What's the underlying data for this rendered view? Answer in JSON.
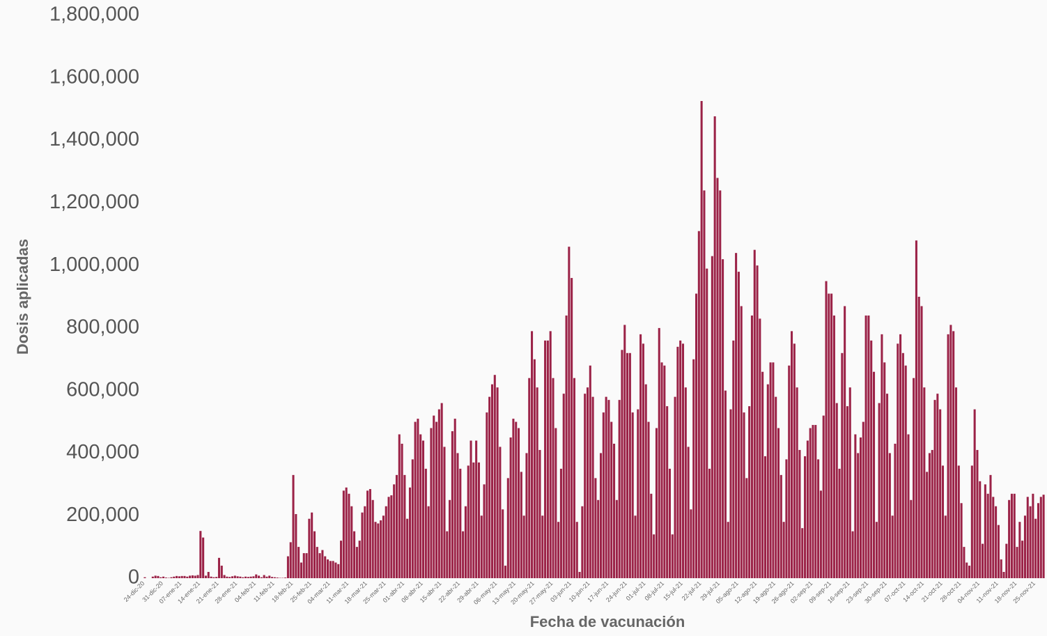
{
  "chart_data": {
    "type": "bar",
    "x_label": "Fecha de vacunación",
    "y_label": "Dosis aplicadas",
    "color": "#9b2247",
    "ylim": [
      0,
      1800000
    ],
    "yticks": [
      0,
      {
        "value": 200000,
        "label": "200,000"
      },
      {
        "value": 400000,
        "label": "400,000"
      },
      {
        "value": 600000,
        "label": "600,000"
      },
      {
        "value": 800000,
        "label": "800,000"
      },
      {
        "value": 1000000,
        "label": "1,000,000"
      },
      {
        "value": 1200000,
        "label": "1,200,000"
      },
      {
        "value": 1400000,
        "label": "1,400,000"
      },
      {
        "value": 1600000,
        "label": "1,600,000"
      },
      {
        "value": 1800000,
        "label": "1,800,000"
      }
    ],
    "categories": [
      "24-dic-20",
      null,
      null,
      null,
      null,
      null,
      null,
      "31-dic-20",
      null,
      null,
      null,
      null,
      null,
      null,
      "07-ene-21",
      null,
      null,
      null,
      null,
      null,
      null,
      "14-ene-21",
      null,
      null,
      null,
      null,
      null,
      null,
      "21-ene-21",
      null,
      null,
      null,
      null,
      null,
      null,
      "28-ene-21",
      null,
      null,
      null,
      null,
      null,
      null,
      "04-feb-21",
      null,
      null,
      null,
      null,
      null,
      null,
      "11-feb-21",
      null,
      null,
      null,
      null,
      null,
      null,
      "18-feb-21",
      null,
      null,
      null,
      null,
      null,
      null,
      "25-feb-21",
      null,
      null,
      null,
      null,
      null,
      null,
      "04-mar-21",
      null,
      null,
      null,
      null,
      null,
      null,
      "11-mar-21",
      null,
      null,
      null,
      null,
      null,
      null,
      "18-mar-21",
      null,
      null,
      null,
      null,
      null,
      null,
      "25-mar-21",
      null,
      null,
      null,
      null,
      null,
      null,
      "01-abr-21",
      null,
      null,
      null,
      null,
      null,
      null,
      "08-abr-21",
      null,
      null,
      null,
      null,
      null,
      null,
      "15-abr-21",
      null,
      null,
      null,
      null,
      null,
      null,
      "22-abr-21",
      null,
      null,
      null,
      null,
      null,
      null,
      "29-abr-21",
      null,
      null,
      null,
      null,
      null,
      null,
      "06-may-21",
      null,
      null,
      null,
      null,
      null,
      null,
      "13-may-21",
      null,
      null,
      null,
      null,
      null,
      null,
      "20-may-21",
      null,
      null,
      null,
      null,
      null,
      null,
      "27-may-21",
      null,
      null,
      null,
      null,
      null,
      null,
      "03-jun-21",
      null,
      null,
      null,
      null,
      null,
      null,
      "10-jun-21",
      null,
      null,
      null,
      null,
      null,
      null,
      "17-jun-21",
      null,
      null,
      null,
      null,
      null,
      null,
      "24-jun-21",
      null,
      null,
      null,
      null,
      null,
      null,
      "01-jul-21",
      null,
      null,
      null,
      null,
      null,
      null,
      "08-jul-21",
      null,
      null,
      null,
      null,
      null,
      null,
      "15-jul-21",
      null,
      null,
      null,
      null,
      null,
      null,
      "22-jul-21",
      null,
      null,
      null,
      null,
      null,
      null,
      "29-jul-21",
      null,
      null,
      null,
      null,
      null,
      null,
      "05-ago-21",
      null,
      null,
      null,
      null,
      null,
      null,
      "12-ago-21",
      null,
      null,
      null,
      null,
      null,
      null,
      "19-ago-21",
      null,
      null,
      null,
      null,
      null,
      null,
      "26-ago-21",
      null,
      null,
      null,
      null,
      null,
      null,
      "02-sep-21",
      null,
      null,
      null,
      null,
      null,
      null,
      "09-sep-21",
      null,
      null,
      null,
      null,
      null,
      null,
      "16-sep-21",
      null,
      null,
      null,
      null,
      null,
      null,
      "23-sep-21",
      null,
      null,
      null,
      null,
      null,
      null,
      "30-sep-21",
      null,
      null,
      null,
      null,
      null,
      null,
      "07-oct-21",
      null,
      null,
      null,
      null,
      null,
      null,
      "14-oct-21",
      null,
      null,
      null,
      null,
      null,
      null,
      "21-oct-21",
      null,
      null,
      null,
      null,
      null,
      null,
      "28-oct-21",
      null,
      null,
      null,
      null,
      null,
      null,
      "04-nov-21",
      null,
      null,
      null,
      null,
      null,
      null,
      "11-nov-21",
      null,
      null,
      null,
      null,
      null,
      null,
      "18-nov-21",
      null,
      null,
      null,
      null,
      null,
      null,
      "25-nov-21",
      null,
      null,
      null
    ],
    "values": [
      3000,
      0,
      0,
      5000,
      8000,
      7000,
      3000,
      5000,
      2000,
      1000,
      3000,
      5000,
      7000,
      6000,
      7000,
      7000,
      5000,
      8000,
      9000,
      8000,
      10000,
      151000,
      130000,
      8000,
      20000,
      5000,
      3000,
      4000,
      65000,
      40000,
      10000,
      5000,
      4000,
      6000,
      8000,
      6000,
      5000,
      3000,
      5000,
      4000,
      5000,
      6000,
      12000,
      8000,
      3000,
      10000,
      5000,
      8000,
      4000,
      3000,
      2000,
      1000,
      1000,
      2000,
      70000,
      115000,
      330000,
      205000,
      100000,
      50000,
      80000,
      80000,
      190000,
      210000,
      150000,
      100000,
      80000,
      90000,
      70000,
      60000,
      55000,
      55000,
      50000,
      45000,
      120000,
      280000,
      290000,
      270000,
      230000,
      150000,
      100000,
      120000,
      210000,
      230000,
      280000,
      285000,
      250000,
      180000,
      175000,
      185000,
      200000,
      230000,
      260000,
      265000,
      300000,
      330000,
      460000,
      430000,
      330000,
      190000,
      290000,
      380000,
      500000,
      510000,
      460000,
      440000,
      350000,
      230000,
      480000,
      520000,
      500000,
      540000,
      560000,
      420000,
      150000,
      250000,
      470000,
      510000,
      400000,
      350000,
      150000,
      230000,
      360000,
      440000,
      370000,
      440000,
      370000,
      200000,
      300000,
      530000,
      580000,
      620000,
      650000,
      610000,
      420000,
      220000,
      40000,
      320000,
      450000,
      510000,
      500000,
      480000,
      340000,
      200000,
      400000,
      640000,
      790000,
      700000,
      610000,
      410000,
      200000,
      760000,
      760000,
      790000,
      640000,
      480000,
      180000,
      350000,
      590000,
      840000,
      1060000,
      960000,
      640000,
      180000,
      20000,
      230000,
      590000,
      610000,
      680000,
      580000,
      320000,
      250000,
      400000,
      530000,
      580000,
      570000,
      500000,
      430000,
      250000,
      570000,
      730000,
      810000,
      720000,
      720000,
      530000,
      200000,
      540000,
      780000,
      750000,
      620000,
      500000,
      270000,
      140000,
      480000,
      800000,
      690000,
      680000,
      550000,
      350000,
      140000,
      580000,
      740000,
      760000,
      750000,
      610000,
      420000,
      220000,
      700000,
      910000,
      1110000,
      1526000,
      1240000,
      990000,
      350000,
      1030000,
      1477000,
      1280000,
      1240000,
      1020000,
      600000,
      180000,
      540000,
      760000,
      1040000,
      980000,
      870000,
      530000,
      320000,
      550000,
      840000,
      1050000,
      1000000,
      830000,
      660000,
      390000,
      620000,
      690000,
      690000,
      580000,
      480000,
      330000,
      180000,
      380000,
      680000,
      790000,
      750000,
      610000,
      410000,
      160000,
      390000,
      440000,
      480000,
      490000,
      490000,
      380000,
      280000,
      520000,
      950000,
      910000,
      910000,
      840000,
      560000,
      350000,
      720000,
      870000,
      550000,
      610000,
      150000,
      460000,
      400000,
      450000,
      500000,
      840000,
      840000,
      760000,
      660000,
      180000,
      560000,
      780000,
      690000,
      590000,
      400000,
      200000,
      430000,
      750000,
      780000,
      720000,
      680000,
      460000,
      250000,
      640000,
      1080000,
      900000,
      870000,
      610000,
      340000,
      400000,
      410000,
      570000,
      590000,
      540000,
      360000,
      200000,
      780000,
      810000,
      790000,
      610000,
      360000,
      240000,
      100000,
      50000,
      40000,
      360000,
      540000,
      410000,
      310000,
      110000,
      300000,
      270000,
      330000,
      260000,
      230000,
      170000,
      60000,
      20000,
      110000,
      250000,
      270000,
      270000,
      100000,
      180000,
      120000,
      200000,
      260000,
      230000,
      270000,
      190000,
      240000,
      260000,
      267000
    ]
  }
}
